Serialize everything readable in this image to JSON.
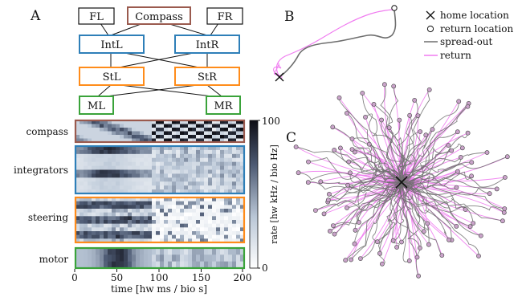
{
  "panels": {
    "a": "A",
    "b": "B",
    "c": "C"
  },
  "network": {
    "nodes": [
      {
        "id": "fl",
        "label": "FL",
        "color": "#111111"
      },
      {
        "id": "compass",
        "label": "Compass",
        "color": "#9a5a4e"
      },
      {
        "id": "fr",
        "label": "FR",
        "color": "#111111"
      },
      {
        "id": "intl",
        "label": "IntL",
        "color": "#2e7fb8"
      },
      {
        "id": "intr",
        "label": "IntR",
        "color": "#2e7fb8"
      },
      {
        "id": "stl",
        "label": "StL",
        "color": "#ff8c1a"
      },
      {
        "id": "str",
        "label": "StR",
        "color": "#ff8c1a"
      },
      {
        "id": "ml",
        "label": "ML",
        "color": "#3aa33a"
      },
      {
        "id": "mr",
        "label": "MR",
        "color": "#3aa33a"
      }
    ]
  },
  "raster": {
    "rows": [
      {
        "id": "compass",
        "label": "compass",
        "color": "#9a5a4e"
      },
      {
        "id": "integrators",
        "label": "integrators",
        "color": "#2e7fb8"
      },
      {
        "id": "steering",
        "label": "steering",
        "color": "#ff8c1a"
      },
      {
        "id": "motor",
        "label": "motor",
        "color": "#3aa33a"
      }
    ],
    "xlabel": "time [hw ms / bio s]",
    "xticks": [
      "0",
      "50",
      "100",
      "150",
      "200"
    ],
    "colorbar": {
      "label": "rate [hw kHz / bio Hz]",
      "ticks": [
        "0",
        "100"
      ]
    }
  },
  "legend": {
    "home": "home location",
    "return_loc": "return location",
    "spread": "spread-out",
    "ret": "return"
  },
  "colors": {
    "spread": "#6e6e6e",
    "return": "#f07cf0",
    "endpoint": "#c9a3c9"
  }
}
